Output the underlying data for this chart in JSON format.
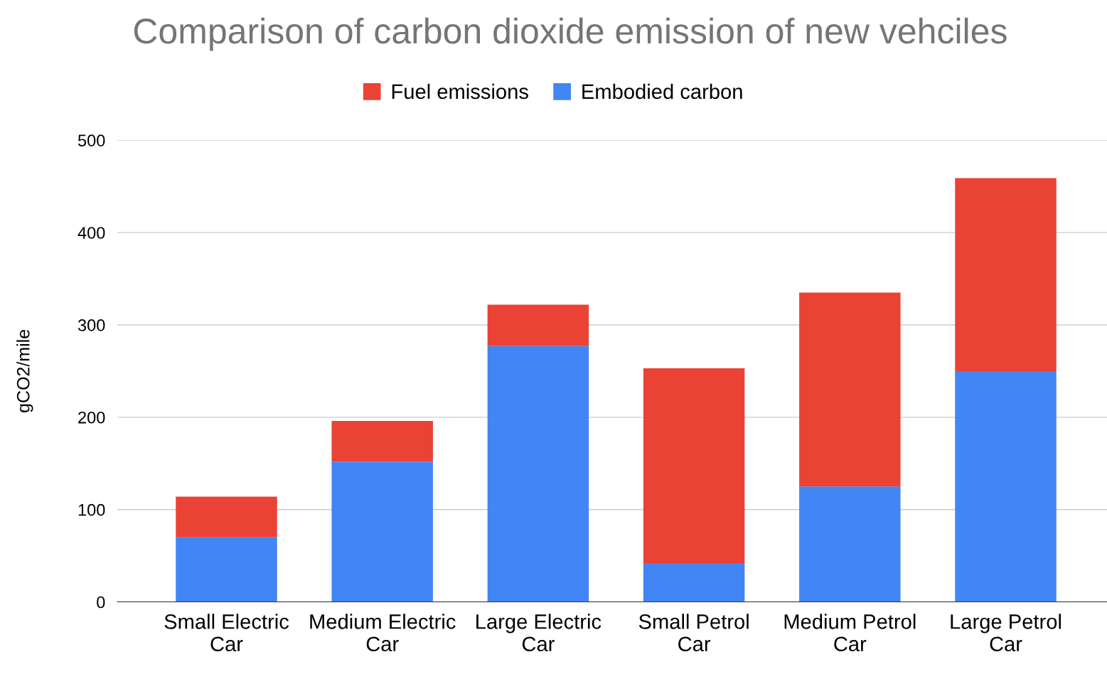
{
  "chart_data": {
    "type": "bar",
    "title": "Comparison of carbon dioxide emission of new vehciles",
    "ylabel": "gCO2/mile",
    "categories": [
      "Small Electric\nCar",
      "Medium Electric\nCar",
      "Large Electric\nCar",
      "Small Petrol\nCar",
      "Medium Petrol\nCar",
      "Large Petrol\nCar"
    ],
    "series": [
      {
        "name": "Embodied carbon",
        "color": "#4285f4",
        "values": [
          70,
          152,
          277,
          42,
          125,
          250
        ]
      },
      {
        "name": "Fuel emissions",
        "color": "#ea4335",
        "values": [
          44,
          44,
          45,
          211,
          210,
          209
        ]
      }
    ],
    "stacked": true,
    "ylim": [
      0,
      500
    ],
    "yticks": [
      0,
      100,
      200,
      300,
      400,
      500
    ],
    "grid": "y",
    "legend": "top"
  }
}
